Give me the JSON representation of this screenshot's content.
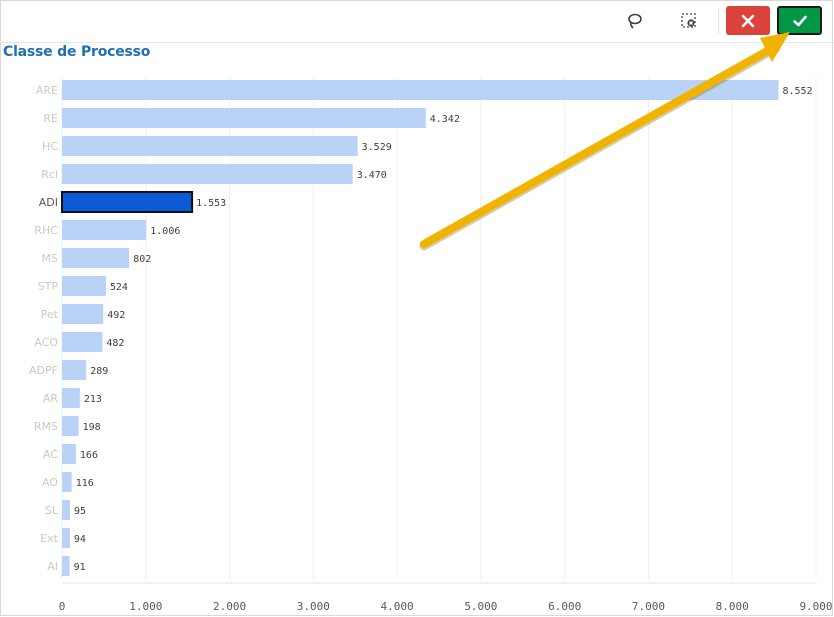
{
  "toolbar": {
    "lasso_icon": "lasso-icon",
    "clear_selection_icon": "clear-selection-icon",
    "cancel_icon": "close-icon",
    "confirm_icon": "check-icon",
    "cancel_color": "#dc423c",
    "confirm_color": "#009845"
  },
  "colors": {
    "bar": "#b9d2f5",
    "bar_selected": "#0a5bd5",
    "gridline": "#efefef",
    "title": "#1f6fb2",
    "arrow": "#f0b400"
  },
  "chart_data": {
    "type": "bar",
    "orientation": "horizontal",
    "title": "Classe de Processo",
    "xlabel": "",
    "ylabel": "",
    "categories": [
      "ARE",
      "RE",
      "HC",
      "Rcl",
      "ADI",
      "RHC",
      "MS",
      "STP",
      "Pet",
      "ACO",
      "ADPF",
      "AR",
      "RMS",
      "AC",
      "AO",
      "SL",
      "Ext",
      "AI"
    ],
    "values": [
      8552,
      4342,
      3529,
      3470,
      1553,
      1006,
      802,
      524,
      492,
      482,
      289,
      213,
      198,
      166,
      116,
      95,
      94,
      91
    ],
    "value_labels": [
      "8.552",
      "4.342",
      "3.529",
      "3.470",
      "1.553",
      "1.006",
      "802",
      "524",
      "492",
      "482",
      "289",
      "213",
      "198",
      "166",
      "116",
      "95",
      "94",
      "91"
    ],
    "selected": "ADI",
    "xlim": [
      0,
      9000
    ],
    "ticks": [
      0,
      1000,
      2000,
      3000,
      4000,
      5000,
      6000,
      7000,
      8000,
      9000
    ],
    "tick_labels": [
      "0",
      "1.000",
      "2.000",
      "3.000",
      "4.000",
      "5.000",
      "6.000",
      "7.000",
      "8.000",
      "9.000"
    ],
    "grid": true
  }
}
